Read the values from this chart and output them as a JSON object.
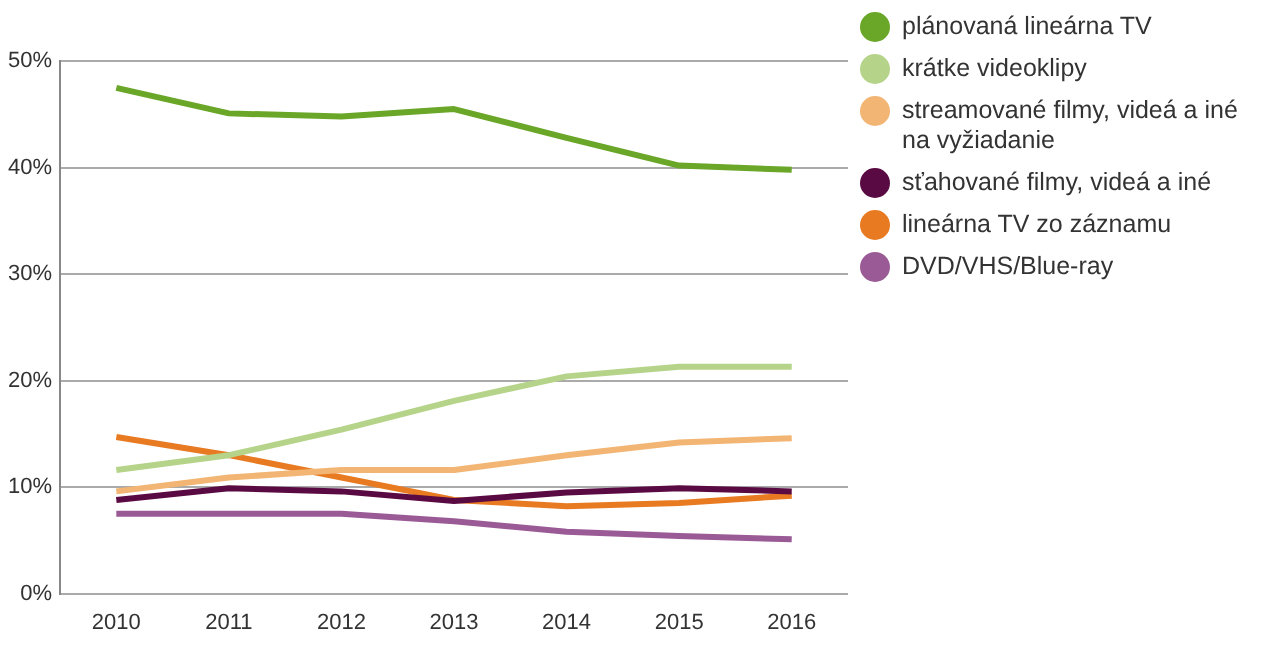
{
  "chart_data": {
    "type": "line",
    "categories": [
      "2010",
      "2011",
      "2012",
      "2013",
      "2014",
      "2015",
      "2016"
    ],
    "series": [
      {
        "name": "plánovaná lineárna TV",
        "color": "#6aa628",
        "values": [
          47.5,
          45.1,
          44.8,
          45.5,
          42.8,
          40.2,
          39.8
        ]
      },
      {
        "name": "krátke videoklipy",
        "color": "#b5d48a",
        "values": [
          11.6,
          13,
          15.4,
          18.1,
          20.4,
          21.3,
          21.3
        ]
      },
      {
        "name": "streamované filmy, videá a iné  na vyžiadanie",
        "color": "#f2b573",
        "values": [
          9.6,
          10.9,
          11.6,
          11.6,
          13,
          14.2,
          14.6
        ]
      },
      {
        "name": "sťahované filmy, videá a iné",
        "color": "#5a0a42",
        "values": [
          8.8,
          9.9,
          9.6,
          8.7,
          9.5,
          9.9,
          9.6
        ]
      },
      {
        "name": "lineárna TV zo záznamu",
        "color": "#e87a22",
        "values": [
          14.7,
          13,
          10.9,
          8.8,
          8.2,
          8.5,
          9.2
        ]
      },
      {
        "name": "DVD/VHS/Blue-ray",
        "color": "#9a5a96",
        "values": [
          7.5,
          7.5,
          7.5,
          6.8,
          5.8,
          5.4,
          5.1
        ]
      }
    ],
    "ylim": [
      0,
      50
    ],
    "yticks": [
      {
        "value": 0,
        "label": "0%"
      },
      {
        "value": 10,
        "label": "10%"
      },
      {
        "value": 20,
        "label": "20%"
      },
      {
        "value": 30,
        "label": "30%"
      },
      {
        "value": 40,
        "label": "40%"
      },
      {
        "value": 50,
        "label": "50%"
      }
    ],
    "grid": "y",
    "legend": "top right",
    "marker": "none",
    "line_style": "solid"
  }
}
